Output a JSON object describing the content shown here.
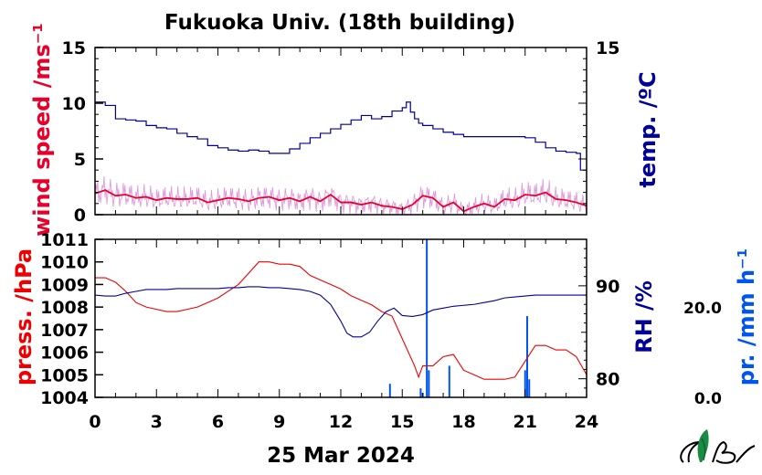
{
  "title": "Fukuoka Univ. (18th building)",
  "date_label": "25 Mar 2024",
  "colors": {
    "wind": "#e8002a",
    "wind_gust": "#d88ad8",
    "temp": "#000099",
    "press": "#ee0000",
    "rh": "#000099",
    "precip": "#0055ee",
    "axis": "#000000"
  },
  "logo_icon": "leaf-logo-icon",
  "chart_data": [
    {
      "type": "line",
      "panel": "top",
      "xlabel": "",
      "xlim": [
        0,
        24
      ],
      "grid": false,
      "left_axis": {
        "label": "wind speed /ms⁻¹",
        "ylim": [
          0,
          15
        ],
        "ticks": [
          {
            "value": 0,
            "label": "0"
          },
          {
            "value": 5,
            "label": "5"
          },
          {
            "value": 10,
            "label": "10"
          },
          {
            "value": 15,
            "label": "15"
          }
        ]
      },
      "right_axis": {
        "label": "temp. /ºC",
        "ylim": [
          0,
          15
        ],
        "ticks": [
          {
            "value": 15,
            "label": "15"
          }
        ]
      },
      "series": [
        {
          "axis": "right",
          "step": true,
          "x": [
            0,
            0.5,
            1.0,
            1.5,
            2.0,
            2.5,
            3.0,
            3.5,
            4.0,
            4.5,
            5.0,
            5.5,
            6.0,
            6.5,
            7.0,
            7.5,
            8.0,
            8.5,
            9.0,
            9.5,
            10.0,
            10.5,
            11.0,
            11.5,
            12.0,
            12.5,
            13.0,
            13.5,
            14.0,
            14.5,
            15.0,
            15.2,
            15.4,
            15.6,
            15.8,
            16.0,
            16.5,
            17.0,
            17.5,
            18.0,
            18.5,
            19.0,
            19.5,
            20.0,
            20.5,
            21.0,
            21.5,
            22.0,
            22.5,
            23.0,
            23.5,
            23.7,
            24.0
          ],
          "values": [
            10.1,
            9.8,
            8.6,
            8.5,
            8.4,
            8.0,
            7.8,
            7.7,
            7.3,
            7.0,
            6.8,
            6.2,
            6.0,
            5.8,
            5.7,
            5.8,
            5.7,
            5.5,
            5.5,
            5.9,
            6.4,
            6.9,
            7.3,
            7.7,
            8.1,
            8.5,
            8.9,
            8.6,
            8.8,
            9.3,
            9.6,
            10.1,
            9.2,
            8.6,
            8.2,
            8.0,
            7.7,
            7.4,
            7.2,
            7.0,
            7.0,
            7.0,
            7.0,
            7.0,
            7.0,
            6.9,
            6.5,
            6.0,
            5.7,
            5.6,
            5.5,
            4.0,
            4.0
          ]
        },
        {
          "axis": "left",
          "smooth": true,
          "x": [
            0,
            0.5,
            1.0,
            1.5,
            2.0,
            2.5,
            3.0,
            3.5,
            4.0,
            4.5,
            5.0,
            5.5,
            6.0,
            6.5,
            7.0,
            7.5,
            8.0,
            8.5,
            9.0,
            9.5,
            10.0,
            10.5,
            11.0,
            11.5,
            12.0,
            12.5,
            13.0,
            13.5,
            14.0,
            14.5,
            15.0,
            15.5,
            16.0,
            16.5,
            17.0,
            17.5,
            18.0,
            18.5,
            19.0,
            19.5,
            20.0,
            20.5,
            21.0,
            21.5,
            22.0,
            22.5,
            23.0,
            23.5,
            24.0
          ],
          "values": [
            1.9,
            2.2,
            1.7,
            1.8,
            1.5,
            1.6,
            1.3,
            1.5,
            1.4,
            1.4,
            1.5,
            1.1,
            1.3,
            1.5,
            1.4,
            1.2,
            1.5,
            1.6,
            1.3,
            1.5,
            1.2,
            1.6,
            1.2,
            1.8,
            1.1,
            1.1,
            0.9,
            1.1,
            0.8,
            0.7,
            0.5,
            0.9,
            1.7,
            1.5,
            0.7,
            1.1,
            0.3,
            0.7,
            1.0,
            0.7,
            1.4,
            1.3,
            1.8,
            1.7,
            2.0,
            1.4,
            1.3,
            1.1,
            0.8
          ]
        }
      ]
    },
    {
      "type": "line",
      "panel": "bottom",
      "xlabel": "25 Mar 2024",
      "xlim": [
        0,
        24
      ],
      "xticks": [
        0,
        3,
        6,
        9,
        12,
        15,
        18,
        21,
        24
      ],
      "grid": false,
      "left_axis": {
        "label": "press. /hPa",
        "ylim": [
          1004,
          1011
        ],
        "ticks": [
          1004,
          1005,
          1006,
          1007,
          1008,
          1009,
          1010,
          1011
        ]
      },
      "right_axis": {
        "label": "RH /%",
        "ylim": [
          78,
          95
        ],
        "ticks": [
          80,
          90
        ]
      },
      "precip_axis": {
        "label": "pr. /mm h⁻¹",
        "ylim": [
          0,
          35
        ],
        "ticks": [
          "0.0",
          "20.0"
        ]
      },
      "series": [
        {
          "axis": "left",
          "x": [
            0,
            0.5,
            1.0,
            1.5,
            2.0,
            2.5,
            3.0,
            3.5,
            4.0,
            4.5,
            5.0,
            5.5,
            6.0,
            6.5,
            7.0,
            7.5,
            8.0,
            8.5,
            9.0,
            9.5,
            10.0,
            10.5,
            11.0,
            11.5,
            12.0,
            12.5,
            13.0,
            13.5,
            14.0,
            14.5,
            15.0,
            15.3,
            15.6,
            15.8,
            16.0,
            16.5,
            17.0,
            17.5,
            18.0,
            18.5,
            19.0,
            19.5,
            20.0,
            20.5,
            21.0,
            21.5,
            22.0,
            22.5,
            23.0,
            23.5,
            24.0
          ],
          "values": [
            1009.3,
            1009.3,
            1009.1,
            1008.7,
            1008.2,
            1008.0,
            1007.9,
            1007.8,
            1007.8,
            1007.9,
            1008.0,
            1008.2,
            1008.4,
            1008.7,
            1009.0,
            1009.5,
            1010.0,
            1010.0,
            1009.9,
            1009.9,
            1009.8,
            1009.4,
            1009.2,
            1009.0,
            1008.8,
            1008.5,
            1008.3,
            1008.1,
            1007.8,
            1007.6,
            1006.6,
            1006.0,
            1005.4,
            1004.9,
            1005.4,
            1005.4,
            1005.8,
            1005.9,
            1005.2,
            1005.0,
            1004.8,
            1004.8,
            1004.8,
            1004.9,
            1005.6,
            1006.3,
            1006.3,
            1006.1,
            1006.1,
            1005.8,
            1005.0
          ]
        },
        {
          "axis": "right",
          "x": [
            0,
            0.5,
            1.0,
            1.5,
            2.0,
            2.5,
            3.0,
            3.5,
            4.0,
            4.5,
            5.0,
            5.5,
            6.0,
            6.5,
            7.0,
            7.5,
            8.0,
            8.5,
            9.0,
            9.5,
            10.0,
            10.5,
            11.0,
            11.5,
            12.0,
            12.3,
            12.6,
            13.0,
            13.4,
            13.8,
            14.2,
            14.6,
            15.0,
            15.5,
            16.0,
            16.5,
            17.0,
            17.5,
            18.0,
            18.5,
            19.0,
            19.5,
            20.0,
            20.5,
            21.0,
            21.5,
            22.0,
            22.5,
            23.0,
            23.5,
            24.0
          ],
          "values": [
            89.0,
            88.9,
            88.9,
            89.2,
            89.4,
            89.6,
            89.6,
            89.6,
            89.7,
            89.7,
            89.7,
            89.7,
            89.7,
            89.8,
            89.8,
            89.9,
            89.9,
            89.8,
            89.8,
            89.7,
            89.6,
            89.4,
            89.0,
            88.0,
            86.2,
            84.9,
            84.5,
            84.5,
            85.0,
            86.2,
            87.2,
            87.6,
            86.8,
            86.7,
            86.9,
            87.4,
            87.6,
            87.8,
            87.9,
            88.0,
            88.2,
            88.4,
            88.7,
            88.8,
            88.9,
            89.0,
            89.0,
            89.0,
            89.0,
            89.0,
            89.0
          ]
        },
        {
          "axis": "precip",
          "bars": true,
          "x": [
            14.4,
            15.9,
            16.0,
            16.2,
            16.3,
            17.3,
            21.0,
            21.1,
            21.2
          ],
          "values": [
            3.0,
            2.0,
            1.0,
            35.0,
            6.0,
            7.0,
            6.0,
            18.0,
            4.0
          ]
        }
      ]
    }
  ]
}
